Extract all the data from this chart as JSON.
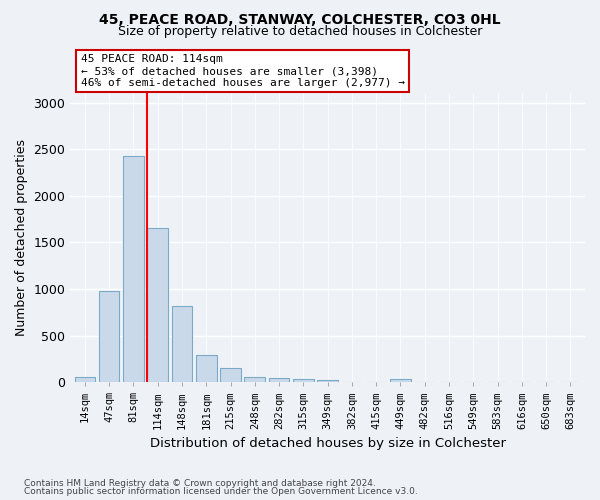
{
  "title1": "45, PEACE ROAD, STANWAY, COLCHESTER, CO3 0HL",
  "title2": "Size of property relative to detached houses in Colchester",
  "xlabel": "Distribution of detached houses by size in Colchester",
  "ylabel": "Number of detached properties",
  "categories": [
    "14sqm",
    "47sqm",
    "81sqm",
    "114sqm",
    "148sqm",
    "181sqm",
    "215sqm",
    "248sqm",
    "282sqm",
    "315sqm",
    "349sqm",
    "382sqm",
    "415sqm",
    "449sqm",
    "482sqm",
    "516sqm",
    "549sqm",
    "583sqm",
    "616sqm",
    "650sqm",
    "683sqm"
  ],
  "values": [
    55,
    980,
    2430,
    1650,
    820,
    290,
    150,
    55,
    45,
    30,
    20,
    0,
    0,
    30,
    0,
    0,
    0,
    0,
    0,
    0,
    0
  ],
  "bar_color": "#c9d9ea",
  "bar_edge_color": "#7aaac8",
  "redline_index": 3,
  "annotation_text": "45 PEACE ROAD: 114sqm\n← 53% of detached houses are smaller (3,398)\n46% of semi-detached houses are larger (2,977) →",
  "annotation_box_color": "#ffffff",
  "annotation_box_edge": "#cc0000",
  "footer1": "Contains HM Land Registry data © Crown copyright and database right 2024.",
  "footer2": "Contains public sector information licensed under the Open Government Licence v3.0.",
  "ylim": [
    0,
    3100
  ],
  "yticks": [
    0,
    500,
    1000,
    1500,
    2000,
    2500,
    3000
  ],
  "background_color": "#eef2f7",
  "grid_color": "#ffffff"
}
